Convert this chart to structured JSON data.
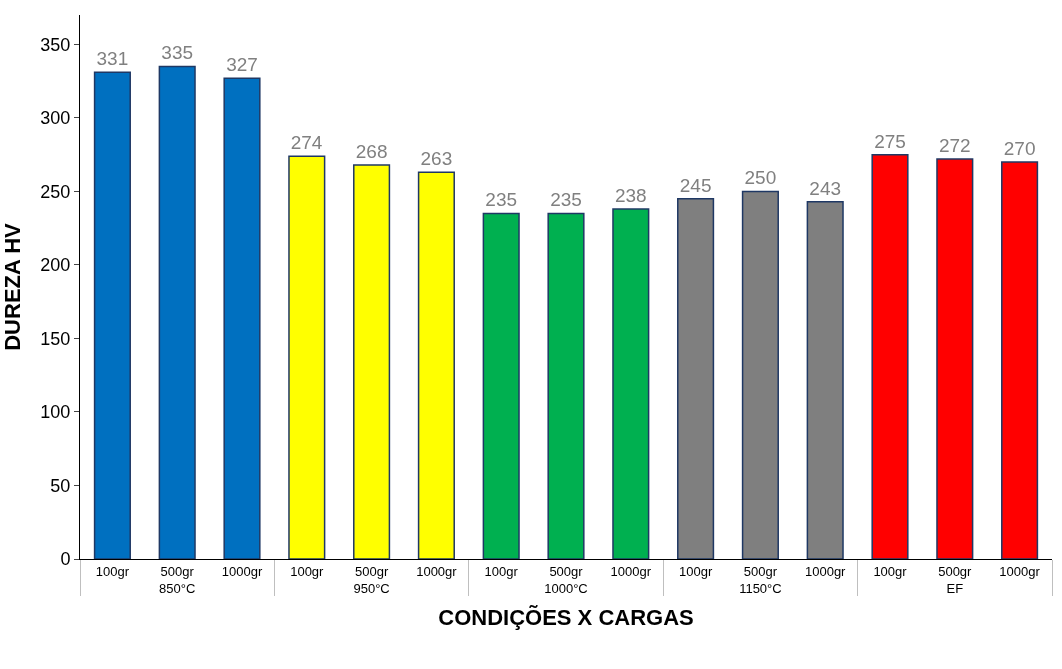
{
  "chart_data": {
    "type": "bar",
    "xlabel": "CONDIÇÕES X CARGAS",
    "ylabel": "DUREZA HV",
    "categories": [
      "100gr",
      "500gr",
      "1000gr",
      "100gr",
      "500gr",
      "1000gr",
      "100gr",
      "500gr",
      "1000gr",
      "100gr",
      "500gr",
      "1000gr",
      "100gr",
      "500gr",
      "1000gr"
    ],
    "annotations": [
      "850°C",
      "950°C",
      "1000°C",
      "1150°C",
      "EF"
    ],
    "values": [
      331,
      335,
      327,
      274,
      268,
      263,
      235,
      235,
      238,
      245,
      250,
      243,
      275,
      272,
      270
    ],
    "colors": [
      "#0070c0",
      "#0070c0",
      "#0070c0",
      "#ffff00",
      "#ffff00",
      "#ffff00",
      "#00b050",
      "#00b050",
      "#00b050",
      "#7f7f7f",
      "#7f7f7f",
      "#7f7f7f",
      "#ff0000",
      "#ff0000",
      "#ff0000"
    ],
    "data_labels": true,
    "ylim": [
      0,
      370
    ],
    "yticks": [
      0,
      50,
      100,
      150,
      200,
      250,
      300,
      350
    ],
    "legend": false
  }
}
